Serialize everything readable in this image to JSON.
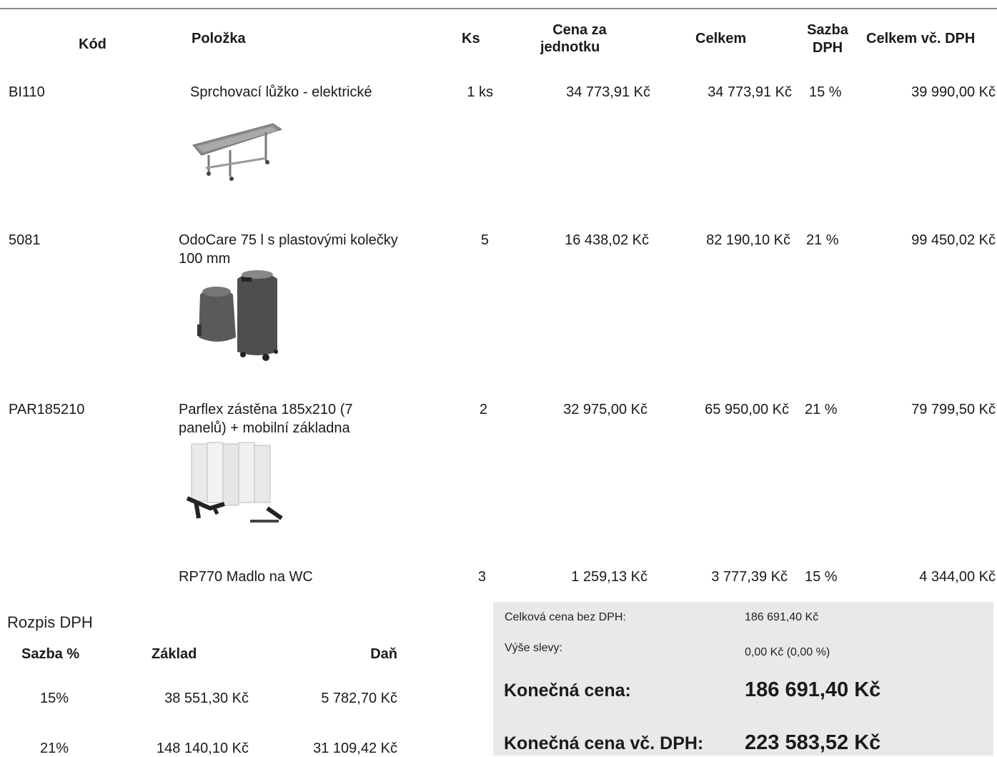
{
  "header": {
    "kod": "Kód",
    "polozka": "Položka",
    "ks": "Ks",
    "cena_za_jednotku_1": "Cena za",
    "cena_za_jednotku_2": "jednotku",
    "celkem": "Celkem",
    "sazba_1": "Sazba",
    "sazba_2": "DPH",
    "celkem_vc_dph": "Celkem vč. DPH"
  },
  "items": [
    {
      "kod": "BI110",
      "polozka": "Sprchovací lůžko - elektrické",
      "ks": "1 ks",
      "cena": "34 773,91 Kč",
      "celkem": "34 773,91 Kč",
      "sazba": "15 %",
      "celkem_dph": "39 990,00 Kč",
      "image_icon": "shower-bed-image"
    },
    {
      "kod": "5081",
      "polozka": "OdoCare 75 l s plastovými kolečky 100 mm",
      "ks": "5",
      "cena": "16 438,02 Kč",
      "celkem": "82 190,10 Kč",
      "sazba": "21 %",
      "celkem_dph": "99 450,02 Kč",
      "image_icon": "waste-bins-image"
    },
    {
      "kod": "PAR185210",
      "polozka": "Parflex zástěna 185x210 (7 panelů) + mobilní základna",
      "ks": "2",
      "cena": "32 975,00 Kč",
      "celkem": "65 950,00 Kč",
      "sazba": "21 %",
      "celkem_dph": "79 799,50 Kč",
      "image_icon": "folding-screen-image"
    },
    {
      "kod": "",
      "polozka": "RP770 Madlo na WC",
      "ks": "3",
      "cena": "1 259,13 Kč",
      "celkem": "3 777,39 Kč",
      "sazba": "15 %",
      "celkem_dph": "4 344,00 Kč"
    }
  ],
  "vat": {
    "title": "Rozpis DPH",
    "headers": {
      "sazba": "Sazba %",
      "zaklad": "Základ",
      "dan": "Daň"
    },
    "rows": [
      {
        "sazba": "15%",
        "zaklad": "38 551,30 Kč",
        "dan": "5 782,70 Kč"
      },
      {
        "sazba": "21%",
        "zaklad": "148 140,10 Kč",
        "dan": "31 109,42 Kč"
      }
    ]
  },
  "summary": {
    "bez_dph_label": "Celková cena bez DPH:",
    "bez_dph_value": "186 691,40 Kč",
    "sleva_label": "Výše slevy:",
    "sleva_value": "0,00 Kč (0,00 %)",
    "konecna_label": "Konečná cena:",
    "konecna_value": "186 691,40 Kč",
    "konecna_dph_label": "Konečná cena vč. DPH:",
    "konecna_dph_value": "223 583,52 Kč"
  },
  "colors": {
    "summary_bg": "#e9e9e9",
    "rule": "#8a8a8a",
    "text": "#1a1a1a"
  }
}
